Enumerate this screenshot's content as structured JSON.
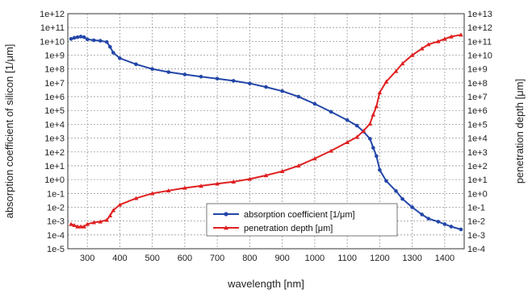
{
  "chart_data": {
    "type": "line",
    "title": "",
    "xlabel": "wavelength [nm]",
    "ylabel_left": "absorption coefficient of silicon [1/μm]",
    "ylabel_right": "penetration depth [μm]",
    "xlim": [
      240,
      1460
    ],
    "x_ticks": [
      300,
      400,
      500,
      600,
      700,
      800,
      900,
      1000,
      1100,
      1200,
      1300,
      1400
    ],
    "y_left_scale": "log",
    "y_left_ticks": [
      "1e-5",
      "1e-4",
      "1e-3",
      "1e-2",
      "1e-1",
      "1e+0",
      "1e+1",
      "1e+2",
      "1e+3",
      "1e+4",
      "1e+5",
      "1e+6",
      "1e+7",
      "1e+8",
      "1e+9",
      "1e+10",
      "1e+11",
      "1e+12"
    ],
    "y_right_scale": "log",
    "y_right_ticks": [
      "1e-4",
      "1e-3",
      "1e-2",
      "1e-1",
      "1e+0",
      "1e+1",
      "1e+2",
      "1e+3",
      "1e+4",
      "1e+5",
      "1e+6",
      "1e+7",
      "1e+8",
      "1e+9",
      "1e+10",
      "1e+11",
      "1e+12",
      "1e+13"
    ],
    "grid": true,
    "legend_position": "bottom-right",
    "series": [
      {
        "name": "absorption coefficient [1/μm]",
        "axis": "left",
        "color": "#2346a8",
        "marker": "circle",
        "x": [
          250,
          260,
          270,
          280,
          290,
          300,
          320,
          340,
          360,
          370,
          380,
          400,
          450,
          500,
          550,
          600,
          650,
          700,
          750,
          800,
          850,
          900,
          950,
          1000,
          1050,
          1100,
          1130,
          1150,
          1170,
          1180,
          1190,
          1200,
          1220,
          1250,
          1270,
          1300,
          1330,
          1350,
          1380,
          1400,
          1420,
          1450
        ],
        "y": [
          15000000000.0,
          18000000000.0,
          20000000000.0,
          22000000000.0,
          20000000000.0,
          14000000000.0,
          12000000000.0,
          11000000000.0,
          9000000000.0,
          4000000000.0,
          1500000000.0,
          600000000.0,
          220000000.0,
          100000000.0,
          60000000.0,
          40000000.0,
          28000000.0,
          20000000.0,
          14000000.0,
          9000000.0,
          5000000.0,
          2500000.0,
          1000000.0,
          300000.0,
          80000.0,
          20000.0,
          8000.0,
          3000.0,
          900.0,
          200.0,
          50,
          5,
          0.8,
          0.15,
          0.04,
          0.01,
          0.003,
          0.0015,
          0.0009,
          0.0006,
          0.0004,
          0.00025
        ]
      },
      {
        "name": "penetration depth [μm]",
        "axis": "right",
        "color": "#e02020",
        "marker": "triangle",
        "x": [
          250,
          260,
          270,
          280,
          290,
          300,
          320,
          340,
          360,
          370,
          380,
          400,
          450,
          500,
          550,
          600,
          650,
          700,
          750,
          800,
          850,
          900,
          950,
          1000,
          1050,
          1100,
          1130,
          1150,
          1170,
          1180,
          1190,
          1200,
          1220,
          1250,
          1270,
          1300,
          1330,
          1350,
          1380,
          1400,
          1420,
          1450
        ],
        "y": [
          0.006,
          0.005,
          0.004,
          0.004,
          0.004,
          0.006,
          0.008,
          0.009,
          0.012,
          0.025,
          0.06,
          0.15,
          0.45,
          1.0,
          1.6,
          2.5,
          3.5,
          5,
          7,
          11,
          20,
          40,
          100,
          330,
          1200,
          5000,
          12000,
          33000,
          110000.0,
          500000.0,
          2000000.0,
          20000000.0,
          120000000.0,
          700000000.0,
          2500000000.0,
          10000000000.0,
          30000000000.0,
          60000000000.0,
          100000000000.0,
          150000000000.0,
          220000000000.0,
          300000000000.0
        ]
      }
    ]
  }
}
